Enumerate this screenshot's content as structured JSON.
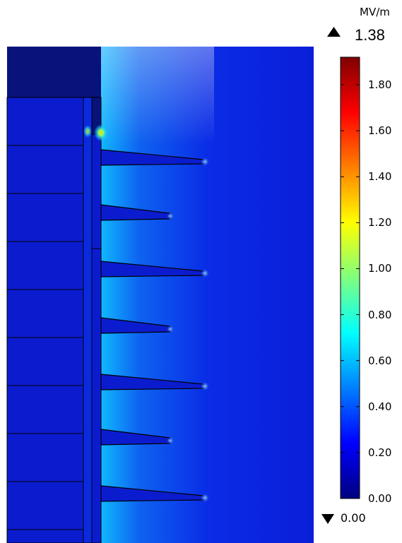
{
  "colorbar": {
    "unit": "MV/m",
    "max_value": "1.38",
    "min_value": "0.00",
    "ticks": [
      "1.80",
      "1.60",
      "1.40",
      "1.20",
      "1.00",
      "0.80",
      "0.60",
      "0.40",
      "0.20",
      "0.00"
    ],
    "tick_values": [
      1.8,
      1.6,
      1.4,
      1.2,
      1.0,
      0.8,
      0.6,
      0.4,
      0.2,
      0.0
    ],
    "range": [
      0,
      1.92
    ],
    "colormap": [
      "#00007f",
      "#0000ff",
      "#007fff",
      "#00ffff",
      "#7fff7f",
      "#ffff00",
      "#ff7f00",
      "#ff0000",
      "#7f0000"
    ]
  },
  "colors": {
    "background_field": "#0a1ee0",
    "electrode": "#07127a",
    "insulator": "#0b1ccf",
    "outline": "#000000"
  },
  "icons": {
    "max_marker": "triangle-up-icon",
    "min_marker": "triangle-down-icon"
  }
}
